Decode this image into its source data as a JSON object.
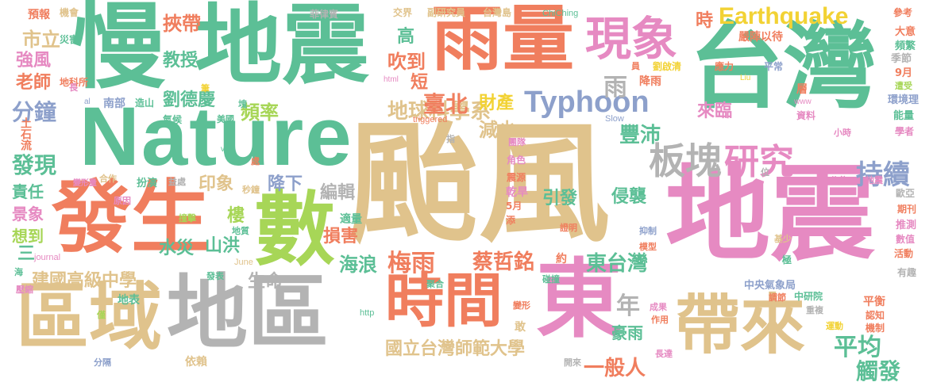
{
  "palette": {
    "teal": "#5cbf96",
    "salmon": "#f07e5e",
    "tan": "#e0c38c",
    "pink": "#e68ac2",
    "grey": "#b3b3b3",
    "green": "#a7d657",
    "blue": "#8da0cb",
    "yellow": "#f2d234"
  },
  "words": [
    {
      "text": "颱風",
      "color": "tan"
    },
    {
      "text": "地震",
      "color": "teal"
    },
    {
      "text": "慢",
      "color": "teal"
    },
    {
      "text": "Nature",
      "color": "teal"
    },
    {
      "text": "台灣",
      "color": "teal"
    },
    {
      "text": "地震",
      "color": "pink"
    },
    {
      "text": "雨量",
      "color": "salmon"
    },
    {
      "text": "發生",
      "color": "salmon"
    },
    {
      "text": "數",
      "color": "green"
    },
    {
      "text": "區域",
      "color": "tan"
    },
    {
      "text": "地區",
      "color": "grey"
    },
    {
      "text": "時間",
      "color": "salmon"
    },
    {
      "text": "東",
      "color": "pink"
    },
    {
      "text": "帶來",
      "color": "tan"
    },
    {
      "text": "現象",
      "color": "pink"
    },
    {
      "text": "Earthquake",
      "color": "yellow"
    },
    {
      "text": "Typhoon",
      "color": "blue"
    },
    {
      "text": "板塊",
      "color": "grey"
    },
    {
      "text": "研究",
      "color": "pink"
    },
    {
      "text": "持續",
      "color": "blue"
    },
    {
      "text": "梅雨",
      "color": "salmon"
    },
    {
      "text": "東台灣",
      "color": "teal"
    },
    {
      "text": "平均",
      "color": "teal"
    },
    {
      "text": "觸發",
      "color": "teal"
    },
    {
      "text": "分鐘",
      "color": "blue"
    },
    {
      "text": "發現",
      "color": "teal"
    },
    {
      "text": "地球科學系",
      "color": "tan"
    },
    {
      "text": "劉德慶",
      "color": "teal"
    },
    {
      "text": "國立台灣師範大學",
      "color": "tan"
    },
    {
      "text": "建國高級中學",
      "color": "tan"
    },
    {
      "text": "蔡哲銘",
      "color": "salmon"
    },
    {
      "text": "一般人",
      "color": "salmon"
    },
    {
      "text": "海浪",
      "color": "teal"
    },
    {
      "text": "豐沛",
      "color": "teal"
    },
    {
      "text": "來臨",
      "color": "pink"
    },
    {
      "text": "頻率",
      "color": "green"
    },
    {
      "text": "教授",
      "color": "teal"
    },
    {
      "text": "挾帶",
      "color": "salmon"
    },
    {
      "text": "雨",
      "color": "grey"
    },
    {
      "text": "臺北",
      "color": "salmon"
    },
    {
      "text": "減少",
      "color": "tan"
    },
    {
      "text": "財產",
      "color": "yellow"
    },
    {
      "text": "吹到",
      "color": "salmon"
    },
    {
      "text": "印象",
      "color": "tan"
    },
    {
      "text": "降下",
      "color": "blue"
    },
    {
      "text": "編輯",
      "color": "grey"
    },
    {
      "text": "損害",
      "color": "salmon"
    },
    {
      "text": "水災",
      "color": "teal"
    },
    {
      "text": "山洪",
      "color": "teal"
    },
    {
      "text": "樓",
      "color": "green"
    },
    {
      "text": "引發",
      "color": "teal"
    },
    {
      "text": "侵襲",
      "color": "teal"
    },
    {
      "text": "豪雨",
      "color": "teal"
    },
    {
      "text": "年",
      "color": "grey"
    },
    {
      "text": "生命",
      "color": "grey"
    },
    {
      "text": "市立",
      "color": "tan"
    },
    {
      "text": "強風",
      "color": "pink"
    },
    {
      "text": "老師",
      "color": "salmon"
    },
    {
      "text": "責任",
      "color": "teal"
    },
    {
      "text": "景象",
      "color": "pink"
    },
    {
      "text": "想到",
      "color": "green"
    },
    {
      "text": "土石流",
      "color": "salmon"
    },
    {
      "text": "時",
      "color": "salmon"
    },
    {
      "text": "高",
      "color": "teal"
    },
    {
      "text": "短",
      "color": "salmon"
    },
    {
      "text": "預報",
      "color": "salmon"
    },
    {
      "text": "機會",
      "color": "tan"
    },
    {
      "text": "菲律賓",
      "color": "grey"
    },
    {
      "text": "交界",
      "color": "tan"
    },
    {
      "text": "副研究員",
      "color": "tan"
    },
    {
      "text": "台灣島",
      "color": "tan"
    },
    {
      "text": "ChiChing",
      "color": "teal"
    },
    {
      "text": "嚴陣以待",
      "color": "salmon"
    },
    {
      "text": "參考",
      "color": "salmon"
    },
    {
      "text": "大意",
      "color": "salmon"
    },
    {
      "text": "頻繁",
      "color": "teal"
    },
    {
      "text": "季節",
      "color": "grey"
    },
    {
      "text": "9月",
      "color": "salmon"
    },
    {
      "text": "遭受",
      "color": "green"
    },
    {
      "text": "環境理",
      "color": "blue"
    },
    {
      "text": "能量",
      "color": "teal"
    },
    {
      "text": "學者",
      "color": "pink"
    },
    {
      "text": "災害",
      "color": "teal"
    },
    {
      "text": "地科所",
      "color": "salmon"
    },
    {
      "text": "南部",
      "color": "blue"
    },
    {
      "text": "造山",
      "color": "teal"
    },
    {
      "text": "氣候",
      "color": "teal"
    },
    {
      "text": "美國",
      "color": "teal"
    },
    {
      "text": "劉啟清",
      "color": "yellow"
    },
    {
      "text": "應力",
      "color": "salmon"
    },
    {
      "text": "平常",
      "color": "blue"
    },
    {
      "text": "降雨",
      "color": "salmon"
    },
    {
      "text": "資料",
      "color": "pink"
    },
    {
      "text": "小時",
      "color": "pink"
    },
    {
      "text": "扮演",
      "color": "teal"
    },
    {
      "text": "合作",
      "color": "tan"
    },
    {
      "text": "益處",
      "color": "grey"
    },
    {
      "text": "秒鐘",
      "color": "tan"
    },
    {
      "text": "原因",
      "color": "pink"
    },
    {
      "text": "撞擊",
      "color": "green"
    },
    {
      "text": "地質",
      "color": "teal"
    },
    {
      "text": "震源",
      "color": "salmon"
    },
    {
      "text": "乾旱",
      "color": "pink"
    },
    {
      "text": "5月",
      "color": "salmon"
    },
    {
      "text": "角色",
      "color": "pink"
    },
    {
      "text": "團隊",
      "color": "pink"
    },
    {
      "text": "證明",
      "color": "salmon"
    },
    {
      "text": "抑制",
      "color": "blue"
    },
    {
      "text": "模型",
      "color": "salmon"
    },
    {
      "text": "基少",
      "color": "tan"
    },
    {
      "text": "推測",
      "color": "pink"
    },
    {
      "text": "數值",
      "color": "pink"
    },
    {
      "text": "活動",
      "color": "salmon"
    },
    {
      "text": "期刊",
      "color": "salmon"
    },
    {
      "text": "歐亞",
      "color": "grey"
    },
    {
      "text": "地震",
      "color": "pink"
    },
    {
      "text": "公分",
      "color": "pink"
    },
    {
      "text": "有趣",
      "color": "grey"
    },
    {
      "text": "中央氣象局",
      "color": "blue"
    },
    {
      "text": "中研院",
      "color": "teal"
    },
    {
      "text": "平衡",
      "color": "salmon"
    },
    {
      "text": "認知",
      "color": "salmon"
    },
    {
      "text": "機制",
      "color": "salmon"
    },
    {
      "text": "運動",
      "color": "yellow"
    },
    {
      "text": "調節",
      "color": "salmon"
    },
    {
      "text": "重複",
      "color": "grey"
    },
    {
      "text": "成果",
      "color": "pink"
    },
    {
      "text": "作用",
      "color": "salmon"
    },
    {
      "text": "長達",
      "color": "pink"
    },
    {
      "text": "開來",
      "color": "grey"
    },
    {
      "text": "碰撞",
      "color": "teal"
    },
    {
      "text": "聚合",
      "color": "teal"
    },
    {
      "text": "變形",
      "color": "salmon"
    },
    {
      "text": "敢",
      "color": "tan"
    },
    {
      "text": "依賴",
      "color": "tan"
    },
    {
      "text": "分隔",
      "color": "blue"
    },
    {
      "text": "僅",
      "color": "green"
    },
    {
      "text": "壓縮",
      "color": "pink"
    },
    {
      "text": "發表",
      "color": "teal"
    },
    {
      "text": "地表",
      "color": "teal"
    },
    {
      "text": "http",
      "color": "teal"
    },
    {
      "text": "June",
      "color": "tan"
    },
    {
      "text": "journal",
      "color": "pink"
    },
    {
      "text": "三",
      "color": "teal"
    },
    {
      "text": "海",
      "color": "teal"
    },
    {
      "text": "triggered",
      "color": "salmon"
    },
    {
      "text": "Slow",
      "color": "blue"
    },
    {
      "text": "Liu",
      "color": "yellow"
    },
    {
      "text": "www",
      "color": "pink"
    },
    {
      "text": "html",
      "color": "pink"
    },
    {
      "text": "v4",
      "color": "teal"
    },
    {
      "text": "al",
      "color": "blue"
    },
    {
      "text": "長",
      "color": "pink"
    },
    {
      "text": "筆",
      "color": "yellow"
    },
    {
      "text": "塊",
      "color": "teal"
    },
    {
      "text": "指",
      "color": "grey"
    },
    {
      "text": "員",
      "color": "salmon"
    },
    {
      "text": "層",
      "color": "salmon"
    },
    {
      "text": "約",
      "color": "salmon"
    },
    {
      "text": "添",
      "color": "salmon"
    },
    {
      "text": "位",
      "color": "grey"
    },
    {
      "text": "極",
      "color": "teal"
    },
    {
      "text": "處",
      "color": "salmon"
    },
    {
      "text": "適量",
      "color": "teal"
    },
    {
      "text": "變形量",
      "color": "pink"
    }
  ]
}
